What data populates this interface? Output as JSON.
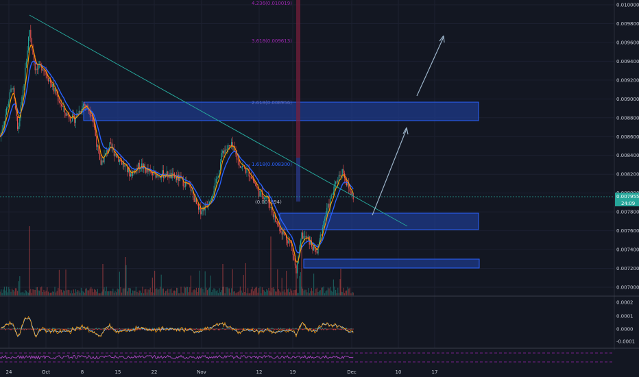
{
  "chart_data": {
    "type": "candlestick",
    "price_axis": {
      "min": 0.0069,
      "max": 0.01,
      "ticks": [
        "0.010000",
        "0.009800",
        "0.009600",
        "0.009400",
        "0.009200",
        "0.009000",
        "0.008800",
        "0.008600",
        "0.008400",
        "0.008200",
        "0.008000",
        "0.007800",
        "0.007600",
        "0.007400",
        "0.007200",
        "0.007000"
      ]
    },
    "time_axis": {
      "ticks": [
        "24",
        "Oct",
        "8",
        "15",
        "22",
        "Nov",
        "12",
        "19",
        "Dec",
        "10",
        "17"
      ]
    },
    "current_price": {
      "value": "0.007955",
      "countdown": "24:09"
    },
    "fib_levels": [
      {
        "label": "4.236(0.010019)",
        "color": "#9c27b0"
      },
      {
        "label": "3.618(0.009613)",
        "color": "#9c27b0"
      },
      {
        "label": "2.618(0.008956)",
        "color": "#5b6bbf"
      },
      {
        "label": "1.618(0.008300)",
        "color": "#2962ff"
      },
      {
        "label": "(0.007894)",
        "color": "#b0b4bf"
      }
    ],
    "zones": [
      {
        "name": "resistance",
        "top": 0.008956,
        "bottom": 0.00877
      },
      {
        "name": "support-upper",
        "top": 0.00779,
        "bottom": 0.00761
      },
      {
        "name": "support-lower",
        "top": 0.00728,
        "bottom": 0.00719
      }
    ],
    "oscillator_axis": {
      "ticks": [
        "0.0002",
        "0.0001",
        "0.0000",
        "-0.0001"
      ]
    },
    "colors": {
      "background": "#131722",
      "up": "#26a69a",
      "down": "#ef5350",
      "ema_fast": "#ff9800",
      "ema_slow": "#2962ff",
      "trendline": "#26a69a",
      "zone_fill": "#1e3a8a",
      "zone_border": "#2962ff",
      "arrow": "#9bb3c9",
      "current_badge": "#26a69a",
      "rsi": "#9c27b0"
    }
  }
}
